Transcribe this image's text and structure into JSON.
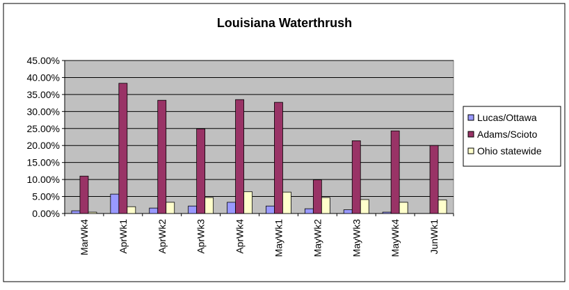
{
  "chart_data": {
    "type": "bar",
    "title": "Louisiana Waterthrush",
    "xlabel": "",
    "ylabel": "",
    "ylim": [
      0,
      45
    ],
    "yticks": [
      "0.00%",
      "5.00%",
      "10.00%",
      "15.00%",
      "20.00%",
      "25.00%",
      "30.00%",
      "35.00%",
      "40.00%",
      "45.00%"
    ],
    "grid": true,
    "legend_position": "right",
    "categories": [
      "MarWk4",
      "AprWk1",
      "AprWk2",
      "AprWk3",
      "AprWk4",
      "MayWk1",
      "MayWk2",
      "MayWk3",
      "MayWk4",
      "JunWk1"
    ],
    "series": [
      {
        "name": "Lucas/Ottawa",
        "color": "#9999ff",
        "values": [
          0.8,
          5.7,
          1.6,
          2.2,
          3.3,
          2.2,
          1.4,
          1.1,
          0.4,
          0.0
        ]
      },
      {
        "name": "Adams/Scioto",
        "color": "#993366",
        "values": [
          11.0,
          38.3,
          33.3,
          24.9,
          33.5,
          32.7,
          9.9,
          21.4,
          24.3,
          20.0
        ]
      },
      {
        "name": "Ohio statewide",
        "color": "#ffffcc",
        "values": [
          0.4,
          2.0,
          3.3,
          4.7,
          6.4,
          6.3,
          4.7,
          4.1,
          3.3,
          4.0
        ]
      }
    ],
    "colors": {
      "plot_background": "#c0c0c0",
      "gridline": "#000000",
      "bar_outline": "#000000"
    }
  }
}
